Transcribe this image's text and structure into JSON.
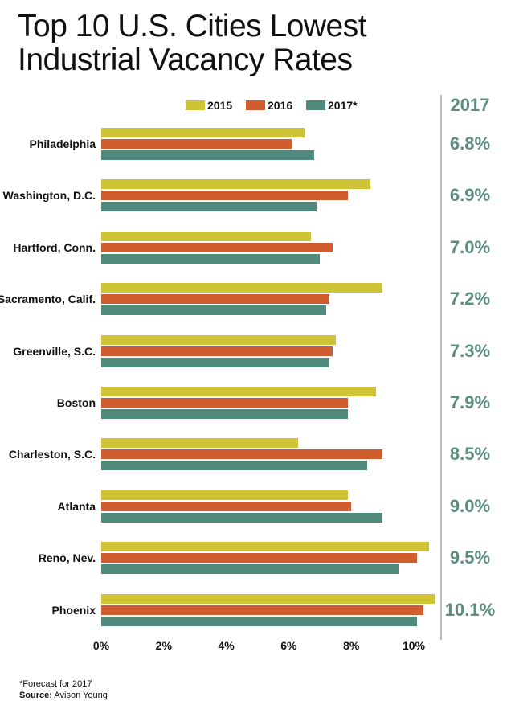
{
  "chart_data": {
    "type": "bar",
    "orientation": "horizontal",
    "title": "Top 10 U.S. Cities Lowest Industrial Vacancy Rates",
    "categories": [
      "Philadelphia",
      "Washington, D.C.",
      "Hartford, Conn.",
      "Sacramento, Calif.",
      "Greenville, S.C.",
      "Boston",
      "Charleston, S.C.",
      "Atlanta",
      "Reno, Nev.",
      "Phoenix"
    ],
    "series": [
      {
        "name": "2015",
        "color": "#cfc436",
        "values": [
          6.5,
          8.6,
          6.7,
          9.0,
          7.5,
          8.8,
          6.3,
          7.9,
          10.5,
          10.7
        ]
      },
      {
        "name": "2016",
        "color": "#d15d2e",
        "values": [
          6.1,
          7.9,
          7.4,
          7.3,
          7.4,
          7.9,
          9.0,
          8.0,
          10.1,
          10.3
        ]
      },
      {
        "name": "2017*",
        "color": "#4f8a7d",
        "values": [
          6.8,
          6.9,
          7.0,
          7.2,
          7.3,
          7.9,
          8.5,
          9.0,
          9.5,
          10.1
        ]
      }
    ],
    "xlim": [
      0,
      11
    ],
    "xticks": [
      "0%",
      "2%",
      "4%",
      "6%",
      "8%",
      "10%"
    ],
    "right_column": {
      "header": "2017",
      "values": [
        "6.8%",
        "6.9%",
        "7.0%",
        "7.2%",
        "7.3%",
        "7.9%",
        "8.5%",
        "9.0%",
        "9.5%",
        "10.1%"
      ]
    },
    "legend_position": "top",
    "grid": false
  },
  "title_line1": "Top 10 U.S. Cities Lowest",
  "title_line2": "Industrial Vacancy Rates",
  "footnote": "*Forecast for 2017",
  "source_label": "Source:",
  "source": "Avison Young"
}
